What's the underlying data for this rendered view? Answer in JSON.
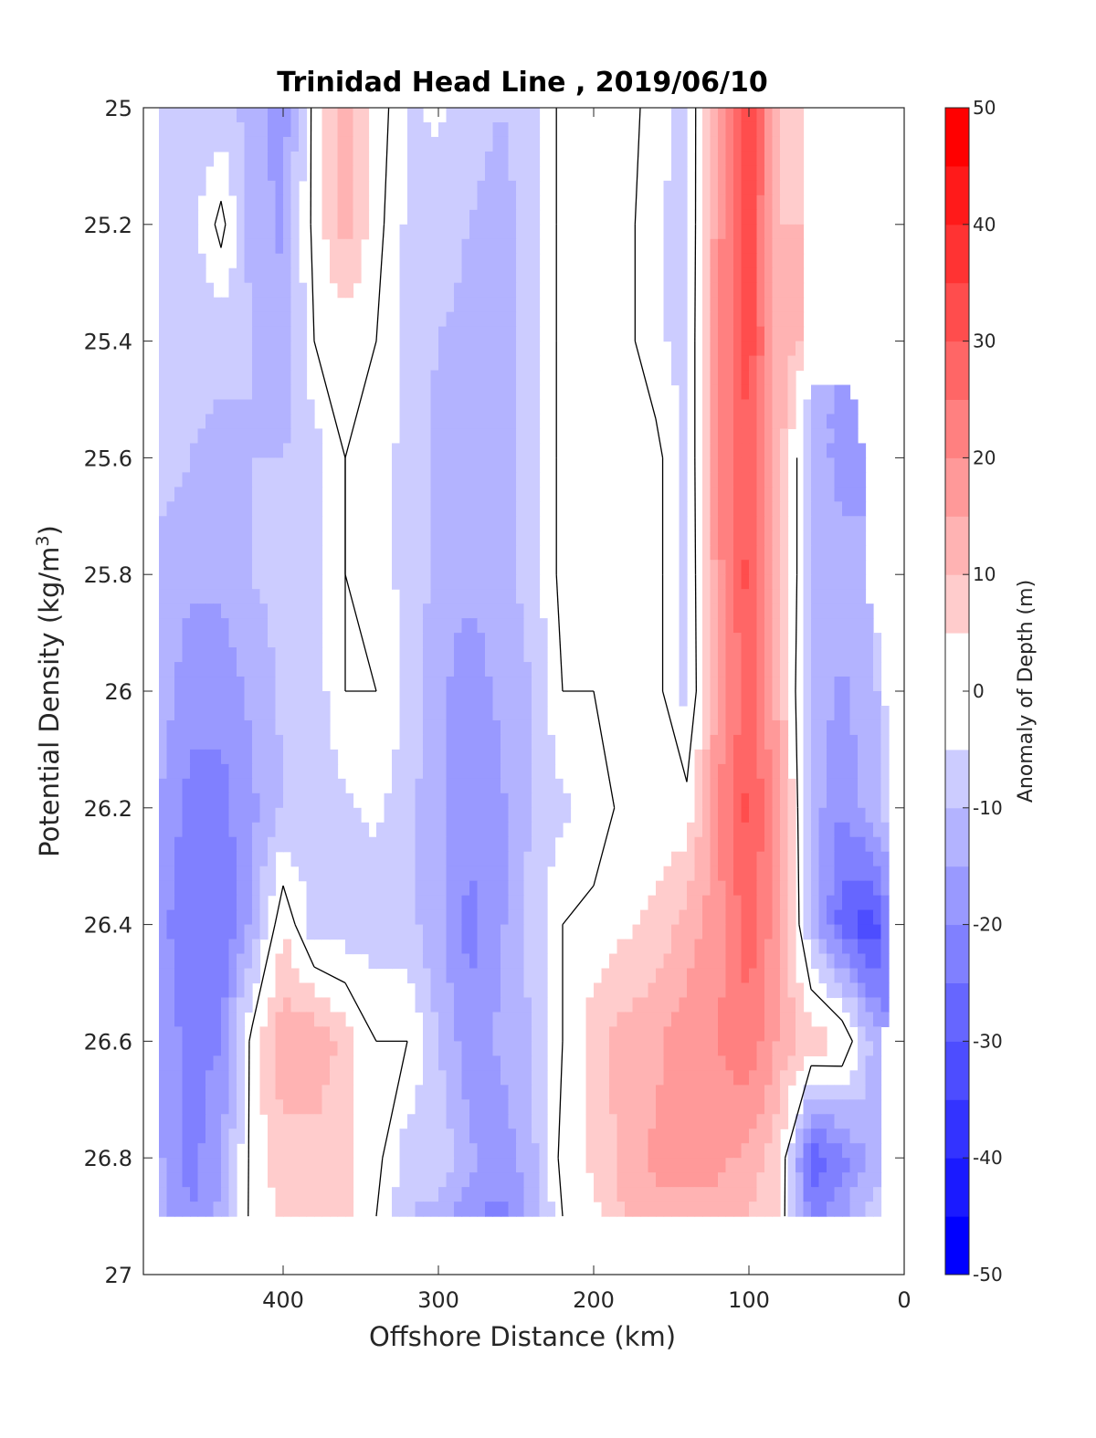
{
  "chart_data": {
    "type": "heatmap",
    "title": "Trinidad Head Line , 2019/06/10",
    "xlabel": "Offshore Distance (km)",
    "ylabel": "Potential Density (kg/m",
    "ylabel_sup": "3",
    "ylabel_close": ")",
    "colorbar_label": "Anomaly of Depth (m)",
    "xlim": [
      490,
      0
    ],
    "ylim": [
      25,
      27
    ],
    "x_ticks": [
      400,
      300,
      200,
      100,
      0
    ],
    "x_tick_labels": [
      "400",
      "300",
      "200",
      "100",
      "0"
    ],
    "y_ticks": [
      25,
      25.2,
      25.4,
      25.6,
      25.8,
      26,
      26.2,
      26.4,
      26.6,
      26.8,
      27
    ],
    "y_tick_labels": [
      "25",
      "25.2",
      "25.4",
      "25.6",
      "25.8",
      "26",
      "26.2",
      "26.4",
      "26.6",
      "26.8",
      "27"
    ],
    "colorbar_range": [
      -50,
      50
    ],
    "colorbar_ticks": [
      50,
      40,
      30,
      20,
      10,
      0,
      -10,
      -20,
      -30,
      -40,
      -50
    ],
    "colorbar_tick_labels": [
      "50",
      "40",
      "30",
      "20",
      "10",
      "0",
      "-10",
      "-20",
      "-30",
      "-40",
      "-50"
    ],
    "data_extent": {
      "x": [
        480,
        10
      ],
      "y": [
        25,
        26.9
      ]
    },
    "x": [
      480,
      460,
      440,
      420,
      400,
      380,
      360,
      340,
      320,
      300,
      280,
      260,
      240,
      220,
      200,
      180,
      160,
      140,
      120,
      100,
      80,
      60,
      40,
      20,
      10
    ],
    "y": [
      25,
      25.2,
      25.4,
      25.6,
      25.8,
      26,
      26.2,
      26.4,
      26.6,
      26.8,
      26.9
    ],
    "z": [
      [
        -8,
        -8,
        -8,
        -12,
        -18,
        2,
        12,
        4,
        -6,
        -4,
        -8,
        -10,
        -8,
        2,
        2,
        4,
        -4,
        -6,
        15,
        38,
        8,
        null,
        null,
        null,
        null
      ],
      [
        -8,
        -8,
        2,
        -12,
        -16,
        2,
        12,
        2,
        -6,
        -7,
        -10,
        -12,
        -8,
        2,
        2,
        2,
        -4,
        -7,
        18,
        33,
        10,
        null,
        null,
        null,
        null
      ],
      [
        -8,
        -8,
        -8,
        -10,
        -14,
        0,
        2,
        0,
        -6,
        -10,
        -12,
        -12,
        -8,
        2,
        2,
        2,
        -4,
        -7,
        20,
        33,
        12,
        null,
        null,
        null,
        null
      ],
      [
        -7,
        -10,
        -12,
        -10,
        -10,
        -8,
        0,
        -4,
        -6,
        -12,
        -14,
        -12,
        -8,
        2,
        2,
        2,
        2,
        -7,
        20,
        30,
        12,
        -10,
        -18,
        null,
        null
      ],
      [
        -12,
        -14,
        -14,
        -10,
        -8,
        -8,
        0,
        -4,
        -6,
        -12,
        -14,
        -12,
        -8,
        2,
        2,
        2,
        2,
        -7,
        18,
        32,
        12,
        -10,
        -12,
        null,
        null
      ],
      [
        -12,
        -18,
        -18,
        -14,
        -9,
        -8,
        0,
        0,
        -6,
        -14,
        -18,
        -14,
        -10,
        0,
        0,
        2,
        2,
        -7,
        16,
        28,
        12,
        -12,
        -16,
        -10,
        null
      ],
      [
        -15,
        -22,
        -22,
        -16,
        -10,
        -8,
        -6,
        -4,
        -8,
        -14,
        -18,
        -16,
        -10,
        -6,
        -4,
        2,
        2,
        2,
        20,
        32,
        16,
        -12,
        -20,
        -12,
        -8
      ],
      [
        -18,
        -24,
        -25,
        -14,
        5,
        -8,
        -8,
        -8,
        -8,
        -14,
        -22,
        -16,
        -8,
        0,
        2,
        4,
        6,
        12,
        18,
        28,
        16,
        -10,
        -28,
        -34,
        -22
      ],
      [
        -16,
        -22,
        -20,
        2,
        14,
        14,
        8,
        0,
        0,
        -10,
        -18,
        -14,
        -10,
        0,
        8,
        12,
        14,
        18,
        20,
        24,
        14,
        8,
        6,
        -12,
        null
      ],
      [
        -14,
        -22,
        -16,
        2,
        8,
        8,
        6,
        2,
        -8,
        -6,
        -14,
        -18,
        -12,
        2,
        6,
        12,
        16,
        16,
        16,
        14,
        6,
        -30,
        -22,
        -12,
        null
      ],
      [
        -14,
        -20,
        -14,
        2,
        6,
        6,
        6,
        0,
        -10,
        -12,
        -18,
        -22,
        -14,
        0,
        4,
        10,
        14,
        14,
        14,
        10,
        4,
        -22,
        -16,
        -8,
        null
      ]
    ],
    "grid": false
  },
  "colors": {
    "colormap_negative_end": "#0000ff",
    "colormap_zero": "#ffffff",
    "colormap_positive_end": "#ff0000",
    "contour_line": "#000000",
    "axis": "#262626"
  }
}
